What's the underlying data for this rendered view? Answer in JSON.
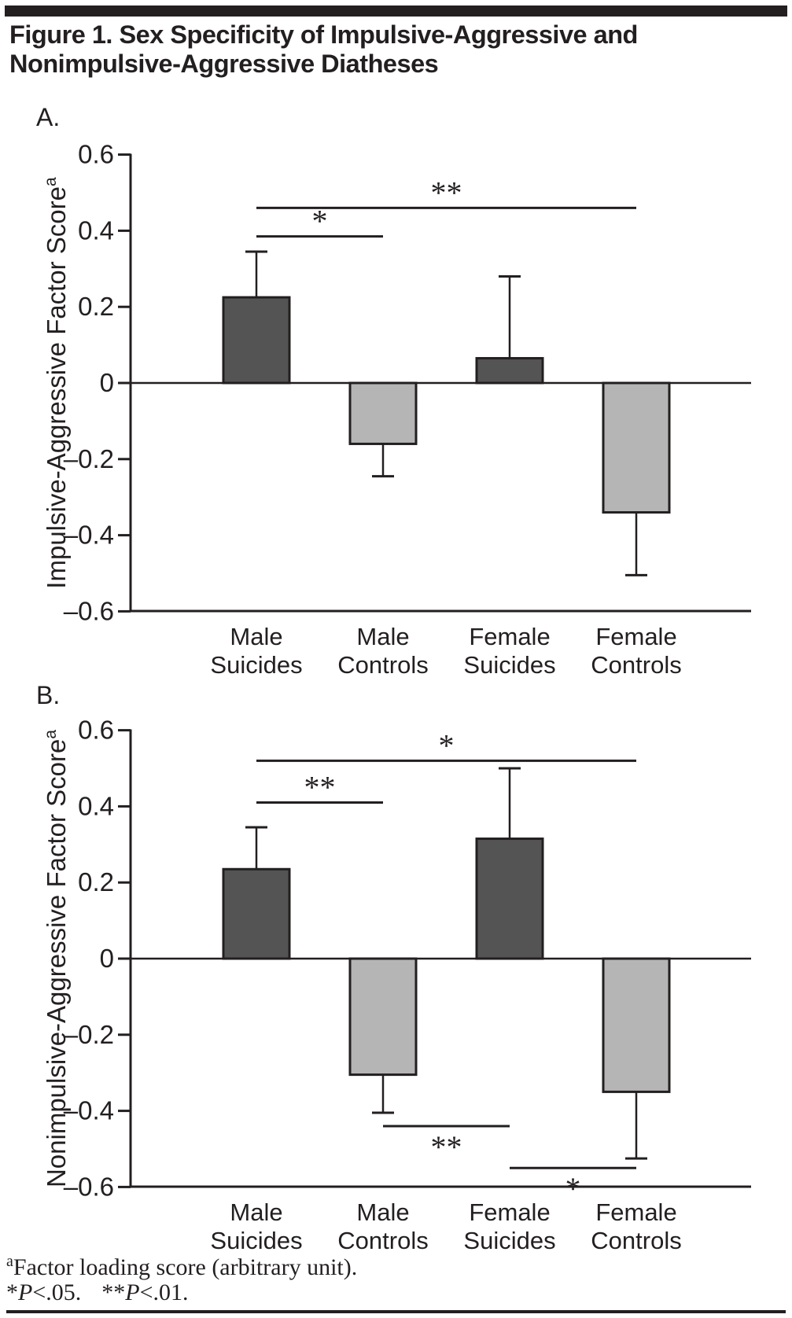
{
  "header": {
    "title_lines": [
      "Figure 1. Sex Specificity of Impulsive-Aggressive and",
      "Nonimpulsive-Aggressive Diatheses"
    ]
  },
  "colors": {
    "ink": "#231f20",
    "dark_bar": "#545454",
    "light_bar": "#b5b5b5",
    "background": "#ffffff"
  },
  "chart_data": [
    {
      "type": "bar",
      "panel_label": "A.",
      "ylabel": "Impulsive-Aggressive Factor Score",
      "ylabel_superscript": "a",
      "xlabel": "",
      "categories": [
        "Male Suicides",
        "Male Controls",
        "Female Suicides",
        "Female Controls"
      ],
      "category_lines": [
        [
          "Male",
          "Suicides"
        ],
        [
          "Male",
          "Controls"
        ],
        [
          "Female",
          "Suicides"
        ],
        [
          "Female",
          "Controls"
        ]
      ],
      "values": [
        0.225,
        -0.16,
        0.065,
        -0.34
      ],
      "error_bar_tips": [
        0.345,
        -0.245,
        0.28,
        -0.505
      ],
      "bar_styles": [
        "dark",
        "light",
        "dark",
        "light"
      ],
      "ylim": [
        -0.6,
        0.6
      ],
      "yticks": [
        0.6,
        0.4,
        0.2,
        0,
        -0.2,
        -0.4,
        -0.6
      ],
      "ytick_labels": [
        "0.6",
        "0.4",
        "0.2",
        "0",
        "–0.2",
        "–0.4",
        "–0.6"
      ],
      "grid": false,
      "legend": "none",
      "significance_brackets": [
        {
          "label": "*",
          "from_category": 0,
          "to_category": 1,
          "y": 0.385,
          "label_side": "above"
        },
        {
          "label": "**",
          "from_category": 0,
          "to_category": 3,
          "y": 0.46,
          "label_side": "above"
        }
      ]
    },
    {
      "type": "bar",
      "panel_label": "B.",
      "ylabel": "Nonimpulsive-Aggressive Factor Score",
      "ylabel_superscript": "a",
      "xlabel": "",
      "categories": [
        "Male Suicides",
        "Male Controls",
        "Female Suicides",
        "Female Controls"
      ],
      "category_lines": [
        [
          "Male",
          "Suicides"
        ],
        [
          "Male",
          "Controls"
        ],
        [
          "Female",
          "Suicides"
        ],
        [
          "Female",
          "Controls"
        ]
      ],
      "values": [
        0.235,
        -0.305,
        0.315,
        -0.35
      ],
      "error_bar_tips": [
        0.345,
        -0.405,
        0.5,
        -0.525
      ],
      "bar_styles": [
        "dark",
        "light",
        "dark",
        "light"
      ],
      "ylim": [
        -0.6,
        0.6
      ],
      "yticks": [
        0.6,
        0.4,
        0.2,
        0,
        -0.2,
        -0.4,
        -0.6
      ],
      "ytick_labels": [
        "0.6",
        "0.4",
        "0.2",
        "0",
        "–0.2",
        "–0.4",
        "–0.6"
      ],
      "grid": false,
      "legend": "none",
      "significance_brackets": [
        {
          "label": "**",
          "from_category": 0,
          "to_category": 1,
          "y": 0.41,
          "label_side": "above"
        },
        {
          "label": "*",
          "from_category": 0,
          "to_category": 3,
          "y": 0.52,
          "label_side": "above"
        },
        {
          "label": "**",
          "from_category": 1,
          "to_category": 2,
          "y": -0.44,
          "label_side": "below"
        },
        {
          "label": "*",
          "from_category": 2,
          "to_category": 3,
          "y": -0.55,
          "label_side": "below"
        }
      ]
    }
  ],
  "footnotes": {
    "superscript": "a",
    "line1": "Factor loading score (arbitrary unit).",
    "line2_parts": [
      {
        "stars": "*",
        "var": "P",
        "cond": "<.05."
      },
      {
        "stars": "**",
        "var": "P",
        "cond": "<.01."
      }
    ]
  }
}
